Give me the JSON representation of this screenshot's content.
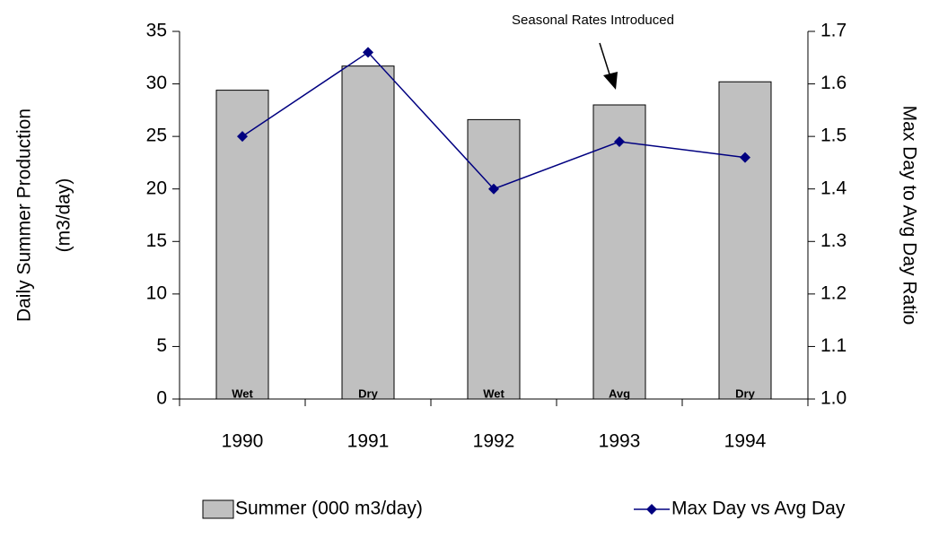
{
  "chart_data": {
    "type": "bar_line",
    "annotation": "Seasonal Rates Introduced",
    "ylabel": [
      "Daily Summer Production",
      "(m3/day)"
    ],
    "y2label": "Max Day to Avg Day Ratio",
    "categories": [
      "1990",
      "1991",
      "1992",
      "1993",
      "1994"
    ],
    "bar_labels": [
      "Wet",
      "Dry",
      "Wet",
      "Avg",
      "Dry"
    ],
    "series": [
      {
        "name": "Summer (000 m3/day)",
        "type": "bar",
        "axis": "y",
        "color": "#c0c0c0",
        "values": [
          29.4,
          31.7,
          26.6,
          28.0,
          30.2
        ]
      },
      {
        "name": "Max Day vs Avg Day",
        "type": "line",
        "axis": "y2",
        "color": "#000080",
        "values": [
          1.5,
          1.66,
          1.4,
          1.49,
          1.46
        ]
      }
    ],
    "ylim": [
      0,
      35
    ],
    "yticks": [
      0,
      5,
      10,
      15,
      20,
      25,
      30,
      35
    ],
    "y2lim": [
      1,
      1.7
    ],
    "y2ticks": [
      {
        "value": 1,
        "label": "1.0"
      },
      1.1,
      1.2,
      1.3,
      1.4,
      1.5,
      1.6,
      1.7
    ],
    "grid": false,
    "legend": "bottom"
  }
}
